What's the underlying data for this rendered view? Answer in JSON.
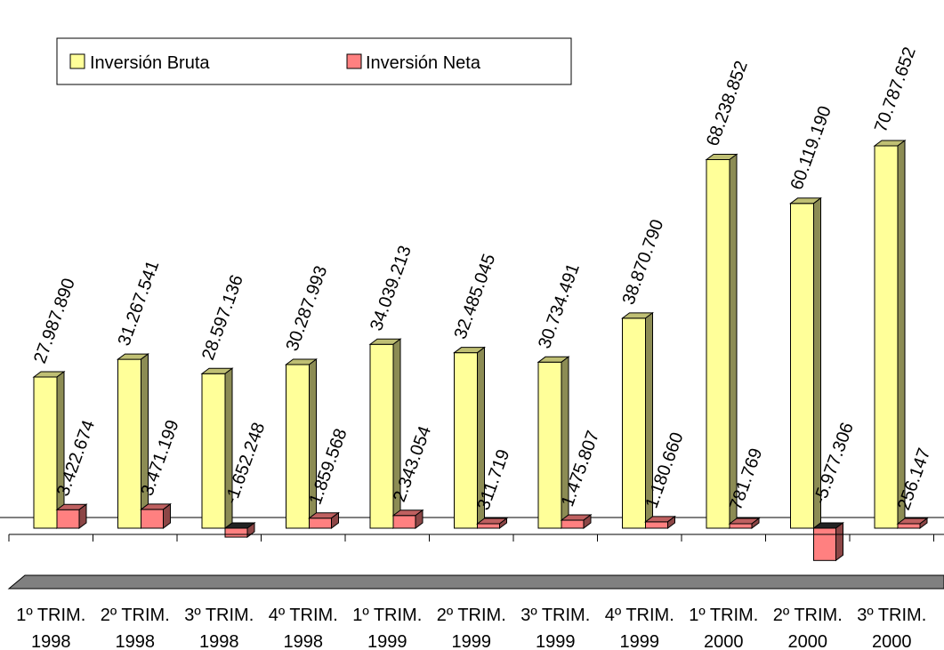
{
  "chart_data": {
    "type": "bar",
    "categories": [
      [
        "1º TRIM.",
        "1998"
      ],
      [
        "2º TRIM.",
        "1998"
      ],
      [
        "3º TRIM.",
        "1998"
      ],
      [
        "4º TRIM.",
        "1998"
      ],
      [
        "1º TRIM.",
        "1999"
      ],
      [
        "2º TRIM.",
        "1999"
      ],
      [
        "3º TRIM.",
        "1999"
      ],
      [
        "4º TRIM.",
        "1999"
      ],
      [
        "1º TRIM.",
        "2000"
      ],
      [
        "2º TRIM.",
        "2000"
      ],
      [
        "3º TRIM.",
        "2000"
      ]
    ],
    "series": [
      {
        "name": "Inversión Bruta",
        "color": "#FFFF99",
        "values": [
          27987890,
          31267541,
          28597136,
          30287993,
          34039213,
          32485045,
          30734491,
          38870790,
          68238852,
          60119190,
          70787652
        ],
        "labels": [
          "27.987.890",
          "31.267.541",
          "28.597.136",
          "30.287.993",
          "34.039.213",
          "32.485.045",
          "30.734.491",
          "38.870.790",
          "68.238.852",
          "60.119.190",
          "70.787.652"
        ]
      },
      {
        "name": "Inversión Neta",
        "color": "#FF8080",
        "values": [
          3422674,
          3471199,
          -1652248,
          1859568,
          2343054,
          311719,
          1475807,
          1180660,
          781769,
          -5977306,
          256147
        ],
        "labels": [
          "3.422.674",
          "3.471.199",
          "-1.652.248",
          "1.859.568",
          "2.343.054",
          "311.719",
          "1.475.807",
          "1.180.660",
          "781.769",
          "-5.977.306",
          "256.147"
        ]
      }
    ],
    "legend_position": "top-left",
    "grid": false,
    "ylim": [
      -10000000,
      80000000
    ]
  }
}
